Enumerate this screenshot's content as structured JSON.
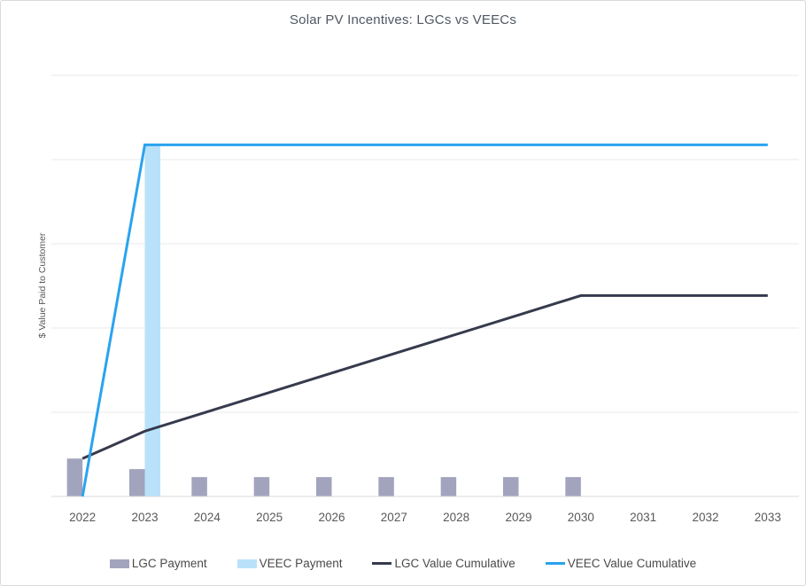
{
  "chart": {
    "title": "Solar PV Incentives: LGCs vs VEECs",
    "y_axis_title": "$ Value Paid to Customer"
  },
  "colors": {
    "background": "#ffffff",
    "frame_border": "#d9d9d9",
    "gridline": "#e9e9e9",
    "axis_line": "#d9d9d9",
    "title_text": "#505863",
    "tick_text": "#595959",
    "legend_text": "#4a4a4a",
    "lgc_bar": "#a2a3bd",
    "veec_bar": "#b9e2fa",
    "lgc_line": "#363a4d",
    "veec_line": "#2aa3ef"
  },
  "chart_data": {
    "type": "combo",
    "title": "Solar PV Incentives: LGCs vs VEECs",
    "xlabel": "",
    "ylabel": "$ Value Paid to Customer",
    "categories": [
      "2022",
      "2023",
      "2024",
      "2025",
      "2026",
      "2027",
      "2028",
      "2029",
      "2030",
      "2031",
      "2032",
      "2033"
    ],
    "y_tick_labels_shown": false,
    "ylim": [
      0,
      100
    ],
    "gridlines": [
      20,
      40,
      60,
      80,
      100
    ],
    "legend_position": "bottom",
    "series": [
      {
        "name": "LGC Payment",
        "type": "bar",
        "color": "#a2a3bd",
        "values": [
          9,
          6.5,
          4.6,
          4.6,
          4.6,
          4.6,
          4.6,
          4.6,
          4.6,
          0,
          0,
          0
        ]
      },
      {
        "name": "VEEC Payment",
        "type": "bar",
        "color": "#b9e2fa",
        "values": [
          0,
          83.5,
          0,
          0,
          0,
          0,
          0,
          0,
          0,
          0,
          0,
          0
        ]
      },
      {
        "name": "LGC Value Cumulative",
        "type": "line",
        "color": "#363a4d",
        "values": [
          9,
          15.5,
          20.1,
          24.7,
          29.3,
          33.9,
          38.5,
          43.1,
          47.7,
          47.7,
          47.7,
          47.7
        ]
      },
      {
        "name": "VEEC Value Cumulative",
        "type": "line",
        "color": "#2aa3ef",
        "values": [
          0,
          83.5,
          83.5,
          83.5,
          83.5,
          83.5,
          83.5,
          83.5,
          83.5,
          83.5,
          83.5,
          83.5
        ]
      }
    ]
  }
}
